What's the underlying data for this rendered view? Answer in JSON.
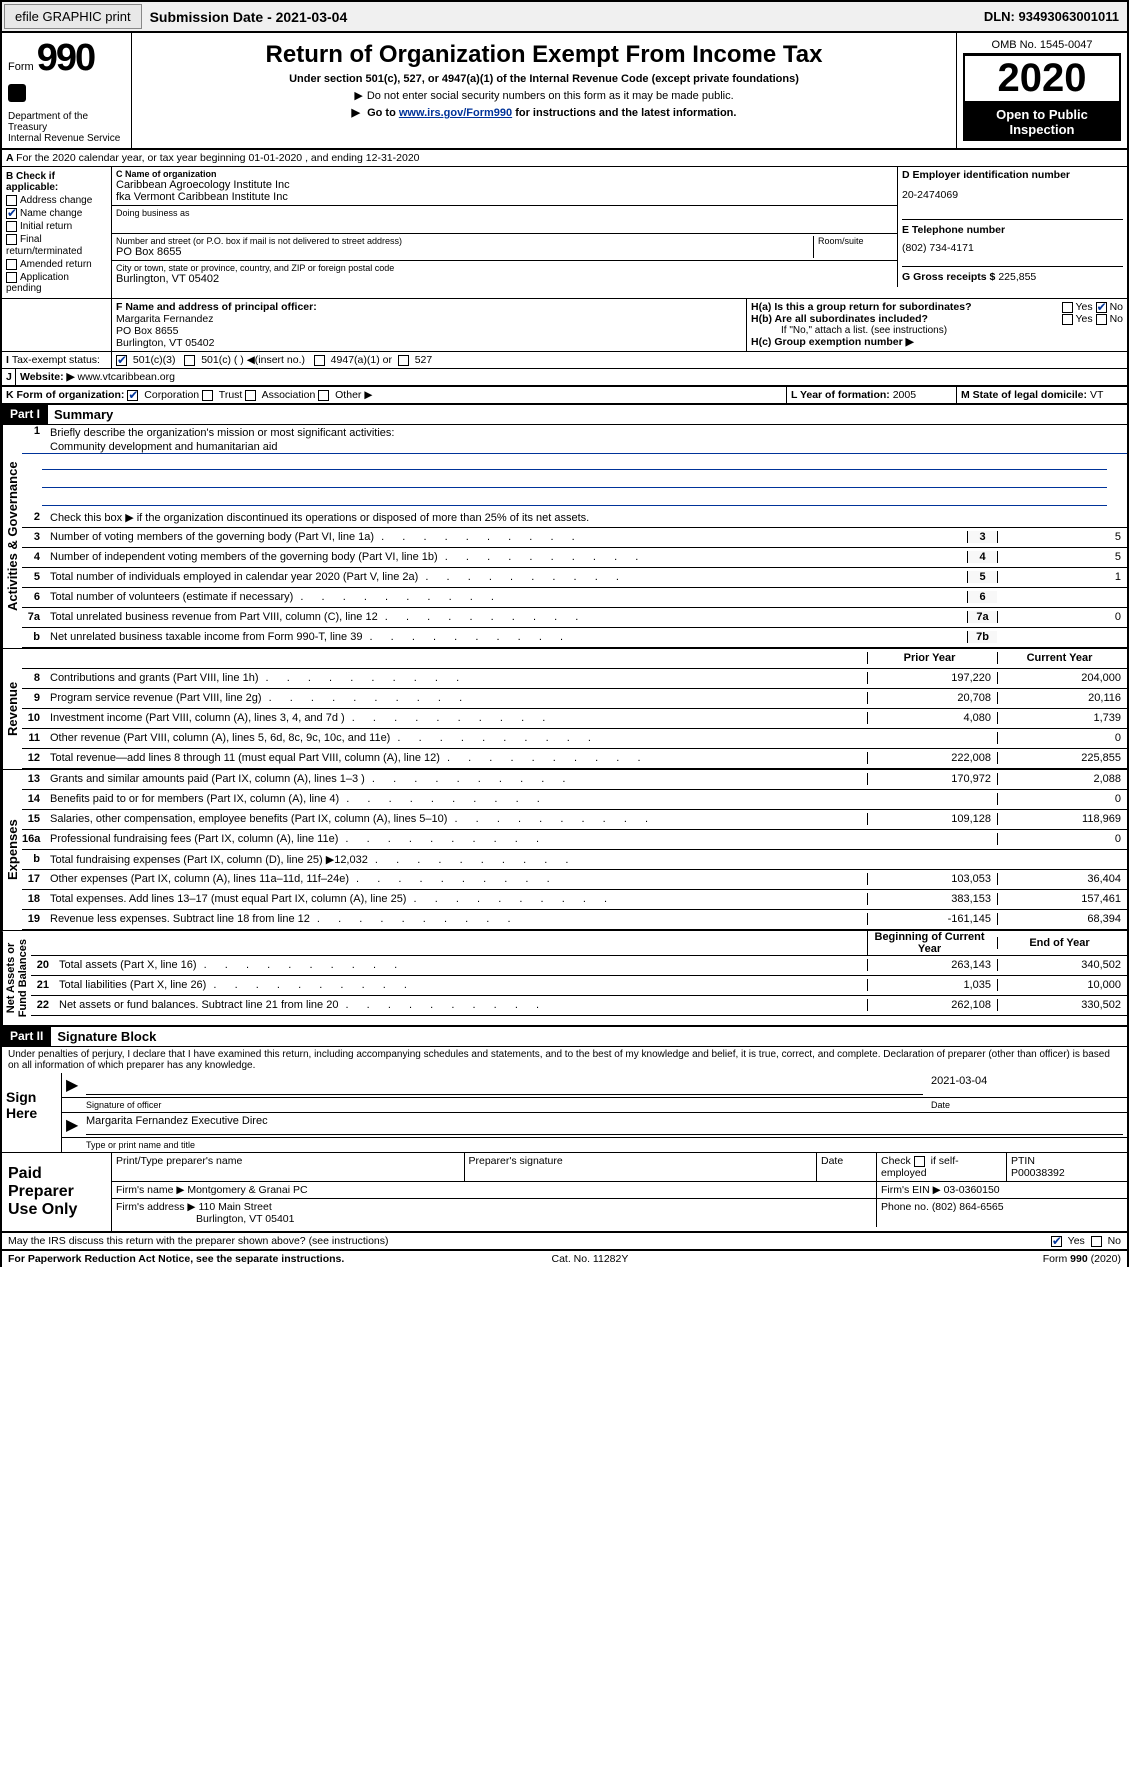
{
  "topbar": {
    "efile_btn": "efile GRAPHIC print",
    "sub_label": "Submission Date - 2021-03-04",
    "dln": "DLN: 93493063001011"
  },
  "header": {
    "form_word": "Form",
    "form_num": "990",
    "dept": "Department of the Treasury\nInternal Revenue Service",
    "title": "Return of Organization Exempt From Income Tax",
    "sub1": "Under section 501(c), 527, or 4947(a)(1) of the Internal Revenue Code (except private foundations)",
    "sub2": "Do not enter social security numbers on this form as it may be made public.",
    "sub3_pre": "Go to ",
    "sub3_link": "www.irs.gov/Form990",
    "sub3_post": " for instructions and the latest information.",
    "omb": "OMB No. 1545-0047",
    "year": "2020",
    "otp1": "Open to Public",
    "otp2": "Inspection"
  },
  "lineA": "For the 2020 calendar year, or tax year beginning 01-01-2020   , and ending 12-31-2020",
  "sectionB": {
    "hdr": "B Check if applicable:",
    "addr": "Address change",
    "name": "Name change",
    "init": "Initial return",
    "final": "Final return/terminated",
    "amend": "Amended return",
    "app": "Application pending"
  },
  "sectionC": {
    "name_lbl": "C Name of organization",
    "name_val": "Caribbean Agroecology Institute Inc\nfka Vermont Caribbean Institute Inc",
    "dba_lbl": "Doing business as",
    "street_lbl": "Number and street (or P.O. box if mail is not delivered to street address)",
    "room_lbl": "Room/suite",
    "street_val": "PO Box 8655",
    "city_lbl": "City or town, state or province, country, and ZIP or foreign postal code",
    "city_val": "Burlington, VT  05402"
  },
  "sectionD": {
    "lbl": "D Employer identification number",
    "val": "20-2474069"
  },
  "sectionE": {
    "lbl": "E Telephone number",
    "val": "(802) 734-4171"
  },
  "sectionG": {
    "lbl": "G Gross receipts $",
    "val": "225,855"
  },
  "sectionF": {
    "lbl": "F  Name and address of principal officer:",
    "name": "Margarita Fernandez",
    "addr1": "PO Box 8655",
    "addr2": "Burlington, VT  05402"
  },
  "sectionH": {
    "a": "H(a)  Is this a group return for subordinates?",
    "b": "H(b)  Are all subordinates included?",
    "b_note": "If \"No,\" attach a list. (see instructions)",
    "c": "H(c)  Group exemption number ▶",
    "yes": "Yes",
    "no": "No"
  },
  "sectionI": {
    "lbl": "Tax-exempt status:",
    "o1": "501(c)(3)",
    "o2": "501(c) (  ) ◀(insert no.)",
    "o3": "4947(a)(1) or",
    "o4": "527"
  },
  "sectionJ": {
    "lbl": "Website: ▶",
    "val": " www.vtcaribbean.org"
  },
  "sectionK": {
    "lbl": "K Form of organization:",
    "corp": "Corporation",
    "trust": "Trust",
    "assoc": "Association",
    "other": "Other ▶"
  },
  "sectionL": {
    "lbl": "L Year of formation:",
    "val": "2005"
  },
  "sectionM": {
    "lbl": "M State of legal domicile:",
    "val": "VT"
  },
  "part1": {
    "hdr": "Part I",
    "title": "Summary",
    "tabs": {
      "gov": "Activities & Governance",
      "rev": "Revenue",
      "exp": "Expenses",
      "net": "Net Assets or\nFund Balances"
    },
    "l1_lbl": "Briefly describe the organization's mission or most significant activities:",
    "l1_val": "Community development and humanitarian aid",
    "l2": "Check this box ▶       if the organization discontinued its operations or disposed of more than 25% of its net assets.",
    "cols": {
      "prior": "Prior Year",
      "cur": "Current Year",
      "boy": "Beginning of Current Year",
      "eoy": "End of Year"
    },
    "lines": [
      {
        "n": "3",
        "d": "Number of voting members of the governing body (Part VI, line 1a)",
        "id": "3",
        "c": "5"
      },
      {
        "n": "4",
        "d": "Number of independent voting members of the governing body (Part VI, line 1b)",
        "id": "4",
        "c": "5"
      },
      {
        "n": "5",
        "d": "Total number of individuals employed in calendar year 2020 (Part V, line 2a)",
        "id": "5",
        "c": "1"
      },
      {
        "n": "6",
        "d": "Total number of volunteers (estimate if necessary)",
        "id": "6",
        "c": ""
      },
      {
        "n": "7a",
        "d": "Total unrelated business revenue from Part VIII, column (C), line 12",
        "id": "7a",
        "c": "0"
      },
      {
        "n": "b",
        "d": "Net unrelated business taxable income from Form 990-T, line 39",
        "id": "7b",
        "c": ""
      }
    ],
    "rev": [
      {
        "n": "8",
        "d": "Contributions and grants (Part VIII, line 1h)",
        "p": "197,220",
        "c": "204,000"
      },
      {
        "n": "9",
        "d": "Program service revenue (Part VIII, line 2g)",
        "p": "20,708",
        "c": "20,116"
      },
      {
        "n": "10",
        "d": "Investment income (Part VIII, column (A), lines 3, 4, and 7d )",
        "p": "4,080",
        "c": "1,739"
      },
      {
        "n": "11",
        "d": "Other revenue (Part VIII, column (A), lines 5, 6d, 8c, 9c, 10c, and 11e)",
        "p": "",
        "c": "0"
      },
      {
        "n": "12",
        "d": "Total revenue—add lines 8 through 11 (must equal Part VIII, column (A), line 12)",
        "p": "222,008",
        "c": "225,855"
      }
    ],
    "exp": [
      {
        "n": "13",
        "d": "Grants and similar amounts paid (Part IX, column (A), lines 1–3 )",
        "p": "170,972",
        "c": "2,088"
      },
      {
        "n": "14",
        "d": "Benefits paid to or for members (Part IX, column (A), line 4)",
        "p": "",
        "c": "0"
      },
      {
        "n": "15",
        "d": "Salaries, other compensation, employee benefits (Part IX, column (A), lines 5–10)",
        "p": "109,128",
        "c": "118,969"
      },
      {
        "n": "16a",
        "d": "Professional fundraising fees (Part IX, column (A), line 11e)",
        "p": "",
        "c": "0"
      },
      {
        "n": "b",
        "d": "Total fundraising expenses (Part IX, column (D), line 25) ▶12,032",
        "p": "shaded",
        "c": "shaded"
      },
      {
        "n": "17",
        "d": "Other expenses (Part IX, column (A), lines 11a–11d, 11f–24e)",
        "p": "103,053",
        "c": "36,404"
      },
      {
        "n": "18",
        "d": "Total expenses. Add lines 13–17 (must equal Part IX, column (A), line 25)",
        "p": "383,153",
        "c": "157,461"
      },
      {
        "n": "19",
        "d": "Revenue less expenses. Subtract line 18 from line 12",
        "p": "-161,145",
        "c": "68,394"
      }
    ],
    "net": [
      {
        "n": "20",
        "d": "Total assets (Part X, line 16)",
        "p": "263,143",
        "c": "340,502"
      },
      {
        "n": "21",
        "d": "Total liabilities (Part X, line 26)",
        "p": "1,035",
        "c": "10,000"
      },
      {
        "n": "22",
        "d": "Net assets or fund balances. Subtract line 21 from line 20",
        "p": "262,108",
        "c": "330,502"
      }
    ]
  },
  "part2": {
    "hdr": "Part II",
    "title": "Signature Block",
    "decl": "Under penalties of perjury, I declare that I have examined this return, including accompanying schedules and statements, and to the best of my knowledge and belief, it is true, correct, and complete. Declaration of preparer (other than officer) is based on all information of which preparer has any knowledge.",
    "sign_here": "Sign Here",
    "sig_officer": "Signature of officer",
    "date_lbl": "Date",
    "date_val": "2021-03-04",
    "name_title": "Margarita Fernandez  Executive Direc",
    "name_lbl": "Type or print name and title"
  },
  "paid": {
    "hdr": "Paid Preparer Use Only",
    "col1": "Print/Type preparer's name",
    "col2": "Preparer's signature",
    "col3": "Date",
    "col4a": "Check        if self-employed",
    "col5_lbl": "PTIN",
    "col5_val": "P00038392",
    "firm_name_lbl": "Firm's name    ▶",
    "firm_name_val": "Montgomery & Granai PC",
    "firm_ein_lbl": "Firm's EIN ▶",
    "firm_ein_val": "03-0360150",
    "firm_addr_lbl": "Firm's address ▶",
    "firm_addr_val1": "110 Main Street",
    "firm_addr_val2": "Burlington, VT  05401",
    "phone_lbl": "Phone no.",
    "phone_val": "(802) 864-6565"
  },
  "discuss": {
    "q": "May the IRS discuss this return with the preparer shown above? (see instructions)",
    "yes": "Yes",
    "no": "No"
  },
  "footer": {
    "left": "For Paperwork Reduction Act Notice, see the separate instructions.",
    "mid": "Cat. No. 11282Y",
    "right": "Form 990 (2020)"
  }
}
